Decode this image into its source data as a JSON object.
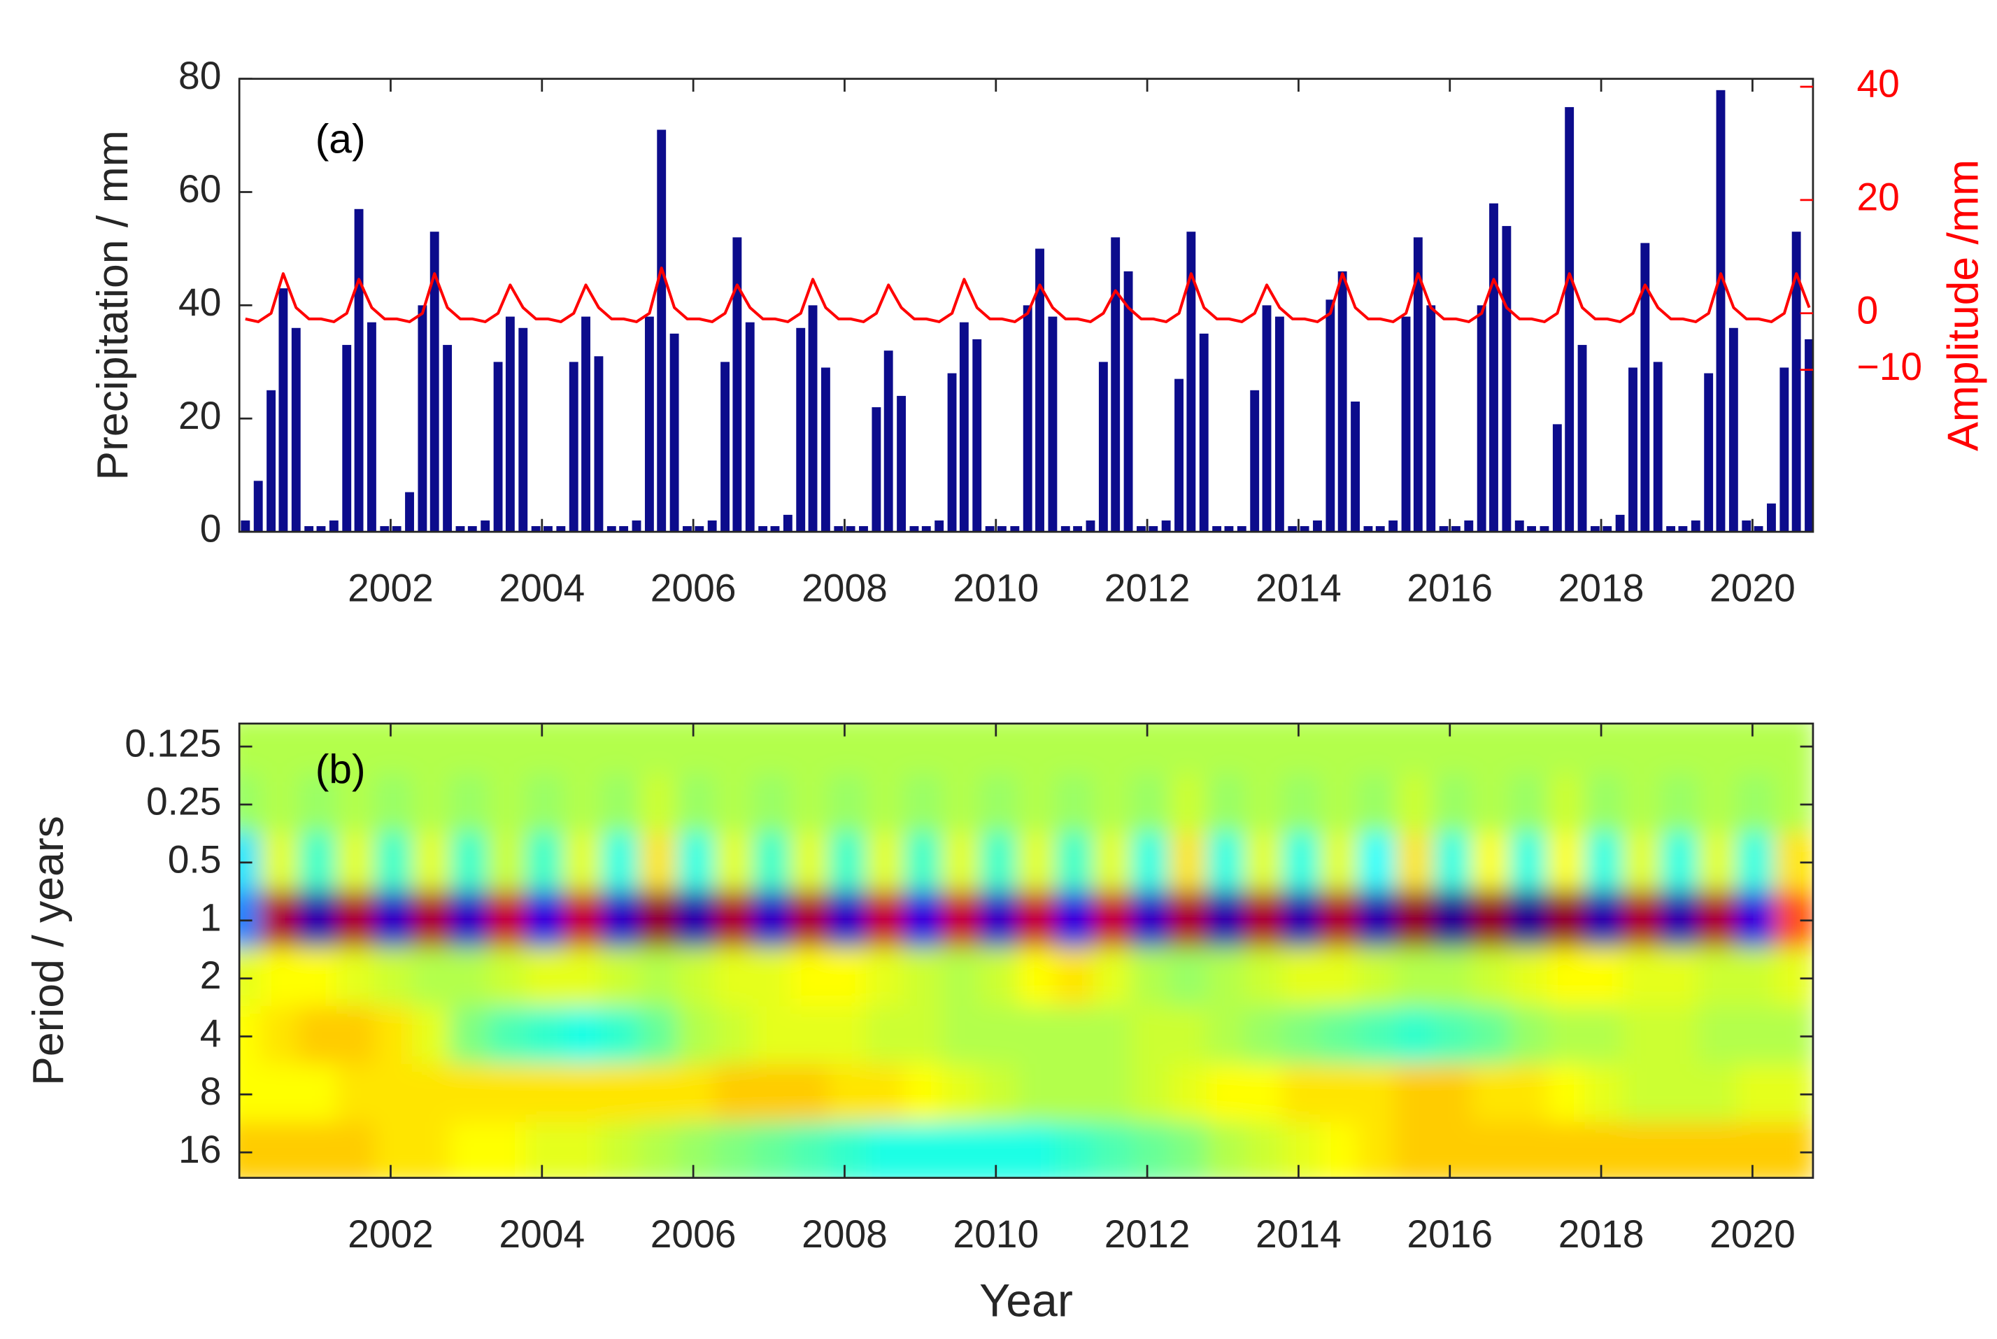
{
  "chart_data": [
    {
      "type": "bar",
      "annotation": "(a)",
      "ylabel": "Precipitation / mm",
      "y2label": "Amplitude /mm",
      "x": [
        2000.08,
        2000.25,
        2000.42,
        2000.58,
        2000.75,
        2000.92,
        2001.08,
        2001.25,
        2001.42,
        2001.58,
        2001.75,
        2001.92,
        2002.08,
        2002.25,
        2002.42,
        2002.58,
        2002.75,
        2002.92,
        2003.08,
        2003.25,
        2003.42,
        2003.58,
        2003.75,
        2003.92,
        2004.08,
        2004.25,
        2004.42,
        2004.58,
        2004.75,
        2004.92,
        2005.08,
        2005.25,
        2005.42,
        2005.58,
        2005.75,
        2005.92,
        2006.08,
        2006.25,
        2006.42,
        2006.58,
        2006.75,
        2006.92,
        2007.08,
        2007.25,
        2007.42,
        2007.58,
        2007.75,
        2007.92,
        2008.08,
        2008.25,
        2008.42,
        2008.58,
        2008.75,
        2008.92,
        2009.08,
        2009.25,
        2009.42,
        2009.58,
        2009.75,
        2009.92,
        2010.08,
        2010.25,
        2010.42,
        2010.58,
        2010.75,
        2010.92,
        2011.08,
        2011.25,
        2011.42,
        2011.58,
        2011.75,
        2011.92,
        2012.08,
        2012.25,
        2012.42,
        2012.58,
        2012.75,
        2012.92,
        2013.08,
        2013.25,
        2013.42,
        2013.58,
        2013.75,
        2013.92,
        2014.08,
        2014.25,
        2014.42,
        2014.58,
        2014.75,
        2014.92,
        2015.08,
        2015.25,
        2015.42,
        2015.58,
        2015.75,
        2015.92,
        2016.08,
        2016.25,
        2016.42,
        2016.58,
        2016.75,
        2016.92,
        2017.08,
        2017.25,
        2017.42,
        2017.58,
        2017.75,
        2017.92,
        2018.08,
        2018.25,
        2018.42,
        2018.58,
        2018.75,
        2018.92,
        2019.08,
        2019.25,
        2019.42,
        2019.58,
        2019.75,
        2019.92,
        2020.08,
        2020.25,
        2020.42,
        2020.58,
        2020.75
      ],
      "series": [
        {
          "color": "#0c0c8c",
          "values": [
            2,
            9,
            25,
            43,
            36,
            1,
            1,
            2,
            33,
            57,
            37,
            1,
            1,
            7,
            40,
            53,
            33,
            1,
            1,
            2,
            30,
            38,
            36,
            1,
            1,
            1,
            30,
            38,
            31,
            1,
            1,
            2,
            38,
            71,
            35,
            1,
            1,
            2,
            30,
            52,
            37,
            1,
            1,
            3,
            36,
            40,
            29,
            1,
            1,
            1,
            22,
            32,
            24,
            1,
            1,
            2,
            28,
            37,
            34,
            1,
            1,
            1,
            40,
            50,
            38,
            1,
            1,
            2,
            30,
            52,
            46,
            1,
            1,
            2,
            27,
            53,
            35,
            1,
            1,
            1,
            25,
            40,
            38,
            1,
            1,
            2,
            41,
            46,
            23,
            1,
            1,
            2,
            38,
            52,
            40,
            1,
            1,
            2,
            40,
            58,
            54,
            2,
            1,
            1,
            19,
            75,
            33,
            1,
            1,
            3,
            29,
            51,
            30,
            1,
            1,
            2,
            28,
            78,
            36,
            2,
            1,
            5,
            29,
            53,
            34
          ]
        },
        {
          "type": "line",
          "axis": "y2",
          "color": "#ff0000",
          "values": [
            -1,
            -1.5,
            0,
            7,
            1,
            -1,
            -1,
            -1.5,
            0,
            6,
            1,
            -1,
            -1,
            -1.5,
            0,
            7,
            1,
            -1,
            -1,
            -1.5,
            0,
            5,
            1,
            -1,
            -1,
            -1.5,
            0,
            5,
            1,
            -1,
            -1,
            -1.5,
            0,
            8,
            1,
            -1,
            -1,
            -1.5,
            0,
            5,
            1,
            -1,
            -1,
            -1.5,
            0,
            6,
            1,
            -1,
            -1,
            -1.5,
            0,
            5,
            1,
            -1,
            -1,
            -1.5,
            0,
            6,
            1,
            -1,
            -1,
            -1.5,
            0,
            5,
            1,
            -1,
            -1,
            -1.5,
            0,
            4,
            1,
            -1,
            -1,
            -1.5,
            0,
            7,
            1,
            -1,
            -1,
            -1.5,
            0,
            5,
            1,
            -1,
            -1,
            -1.5,
            0,
            7,
            1,
            -1,
            -1,
            -1.5,
            0,
            7,
            1,
            -1,
            -1,
            -1.5,
            0,
            6,
            1,
            -1,
            -1,
            -1.5,
            0,
            7,
            1,
            -1,
            -1,
            -1.5,
            0,
            5,
            1,
            -1,
            -1,
            -1.5,
            0,
            7,
            1,
            -1,
            -1,
            -1.5,
            0,
            7,
            1
          ]
        }
      ],
      "xlim": [
        2000.0,
        2020.8
      ],
      "xticks": [
        2002,
        2004,
        2006,
        2008,
        2010,
        2012,
        2014,
        2016,
        2018,
        2020
      ],
      "ylim": [
        0,
        80
      ],
      "yticks": [
        0,
        20,
        40,
        60,
        80
      ],
      "y2lim": [
        -38.6,
        41.4
      ],
      "y2ticks": [
        {
          "value": -10,
          "label": "−10"
        },
        0,
        20,
        40
      ],
      "y2color": "#ff0000"
    },
    {
      "type": "heatmap",
      "annotation": "(b)",
      "ylabel": "Period / years",
      "xlabel": "Year",
      "x": [
        2000.05,
        2000.55,
        2001.05,
        2001.55,
        2002.05,
        2002.55,
        2003.05,
        2003.55,
        2004.05,
        2004.55,
        2005.05,
        2005.55,
        2006.05,
        2006.55,
        2007.05,
        2007.55,
        2008.05,
        2008.55,
        2009.05,
        2009.55,
        2010.05,
        2010.55,
        2011.05,
        2011.55,
        2012.05,
        2012.55,
        2013.05,
        2013.55,
        2014.05,
        2014.55,
        2015.05,
        2015.55,
        2016.05,
        2016.55,
        2017.05,
        2017.55,
        2018.05,
        2018.55,
        2019.05,
        2019.55,
        2020.05,
        2020.55
      ],
      "y": [
        0.125,
        0.25,
        0.5,
        1,
        2,
        4,
        8,
        16
      ],
      "z": [
        [
          0.1,
          0.1,
          0.1,
          0.1,
          0.1,
          0.1,
          0.1,
          0.1,
          0.1,
          0.1,
          0.1,
          0.1,
          0.1,
          0.1,
          0.1,
          0.1,
          0.1,
          0.1,
          0.1,
          0.1,
          0.1,
          0.1,
          0.1,
          0.1,
          0.1,
          0.1,
          0.1,
          0.1,
          0.1,
          0.1,
          0.1,
          0.1,
          0.1,
          0.1,
          0.1,
          0.1,
          0.1,
          0.1,
          0.1,
          0.1,
          0.1,
          0.1
        ],
        [
          0.05,
          0.1,
          0.05,
          0.1,
          0.05,
          0.1,
          0.05,
          0.1,
          0.05,
          0.1,
          0.05,
          0.15,
          0.05,
          0.1,
          0.05,
          0.1,
          0.05,
          0.1,
          0.05,
          0.1,
          0.05,
          0.1,
          0.05,
          0.1,
          0.05,
          0.15,
          0.05,
          0.1,
          0.05,
          0.1,
          0.05,
          0.15,
          0.05,
          0.1,
          0.05,
          0.15,
          0.05,
          0.1,
          0.05,
          0.1,
          0.05,
          0.1
        ],
        [
          -0.3,
          0.2,
          -0.15,
          0.2,
          -0.15,
          0.2,
          -0.15,
          0.15,
          -0.15,
          0.2,
          -0.2,
          0.3,
          -0.2,
          0.2,
          -0.15,
          0.2,
          -0.15,
          0.2,
          -0.15,
          0.2,
          -0.15,
          0.2,
          -0.15,
          0.2,
          -0.2,
          0.3,
          -0.2,
          0.2,
          -0.2,
          0.2,
          -0.25,
          0.3,
          -0.2,
          0.25,
          -0.2,
          0.25,
          -0.2,
          0.2,
          -0.2,
          0.2,
          -0.2,
          0.3
        ],
        [
          -0.5,
          0.9,
          -0.9,
          0.9,
          -0.85,
          0.9,
          -0.85,
          0.85,
          -0.8,
          0.85,
          -0.85,
          0.95,
          -0.9,
          0.9,
          -0.85,
          0.9,
          -0.85,
          0.85,
          -0.8,
          0.85,
          -0.85,
          0.85,
          -0.8,
          0.85,
          -0.85,
          0.9,
          -0.9,
          0.9,
          -0.9,
          0.9,
          -0.9,
          0.95,
          -0.95,
          0.95,
          -0.95,
          0.95,
          -0.9,
          0.9,
          -0.9,
          0.9,
          -0.8,
          0.6
        ],
        [
          0.2,
          0.25,
          0.25,
          0.2,
          0.15,
          0.1,
          0.1,
          0.15,
          0.2,
          0.2,
          0.15,
          0.1,
          0.15,
          0.2,
          0.2,
          0.25,
          0.25,
          0.2,
          0.15,
          0.1,
          0.15,
          0.25,
          0.3,
          0.2,
          0.1,
          0.05,
          0.1,
          0.15,
          0.2,
          0.2,
          0.15,
          0.1,
          0.1,
          0.15,
          0.2,
          0.25,
          0.25,
          0.2,
          0.2,
          0.15,
          0.15,
          0.2
        ],
        [
          0.25,
          0.3,
          0.35,
          0.35,
          0.3,
          0.2,
          0.0,
          -0.1,
          -0.15,
          -0.2,
          -0.15,
          -0.05,
          0.1,
          0.15,
          0.2,
          0.2,
          0.2,
          0.15,
          0.15,
          0.1,
          0.1,
          0.1,
          0.1,
          0.1,
          0.15,
          0.15,
          0.1,
          0.05,
          0.0,
          -0.05,
          -0.1,
          -0.15,
          -0.1,
          -0.05,
          0.05,
          0.1,
          0.1,
          0.15,
          0.15,
          0.1,
          0.1,
          0.1
        ],
        [
          0.25,
          0.25,
          0.25,
          0.3,
          0.3,
          0.3,
          0.3,
          0.3,
          0.3,
          0.3,
          0.3,
          0.3,
          0.3,
          0.35,
          0.35,
          0.35,
          0.3,
          0.3,
          0.25,
          0.2,
          0.15,
          0.1,
          0.1,
          0.1,
          0.15,
          0.2,
          0.25,
          0.25,
          0.3,
          0.3,
          0.3,
          0.35,
          0.35,
          0.3,
          0.3,
          0.25,
          0.2,
          0.15,
          0.15,
          0.15,
          0.2,
          0.2
        ],
        [
          0.35,
          0.35,
          0.35,
          0.35,
          0.3,
          0.3,
          0.25,
          0.25,
          0.2,
          0.2,
          0.15,
          0.1,
          0.05,
          0.0,
          -0.05,
          -0.1,
          -0.15,
          -0.2,
          -0.2,
          -0.2,
          -0.2,
          -0.2,
          -0.15,
          -0.1,
          -0.05,
          0.0,
          0.1,
          0.15,
          0.2,
          0.25,
          0.3,
          0.35,
          0.35,
          0.35,
          0.35,
          0.35,
          0.35,
          0.35,
          0.35,
          0.35,
          0.35,
          0.35
        ]
      ],
      "zlim": [
        -1,
        1
      ],
      "colormap": "jet",
      "ylog": 2,
      "yreversed": true,
      "xlim": [
        2000.0,
        2020.8
      ],
      "xticks": [
        2002,
        2004,
        2006,
        2008,
        2010,
        2012,
        2014,
        2016,
        2018,
        2020
      ],
      "ylim": [
        0.095,
        21.7
      ],
      "yticks": [
        0.125,
        0.25,
        0.5,
        1,
        2,
        4,
        8,
        16
      ]
    }
  ]
}
